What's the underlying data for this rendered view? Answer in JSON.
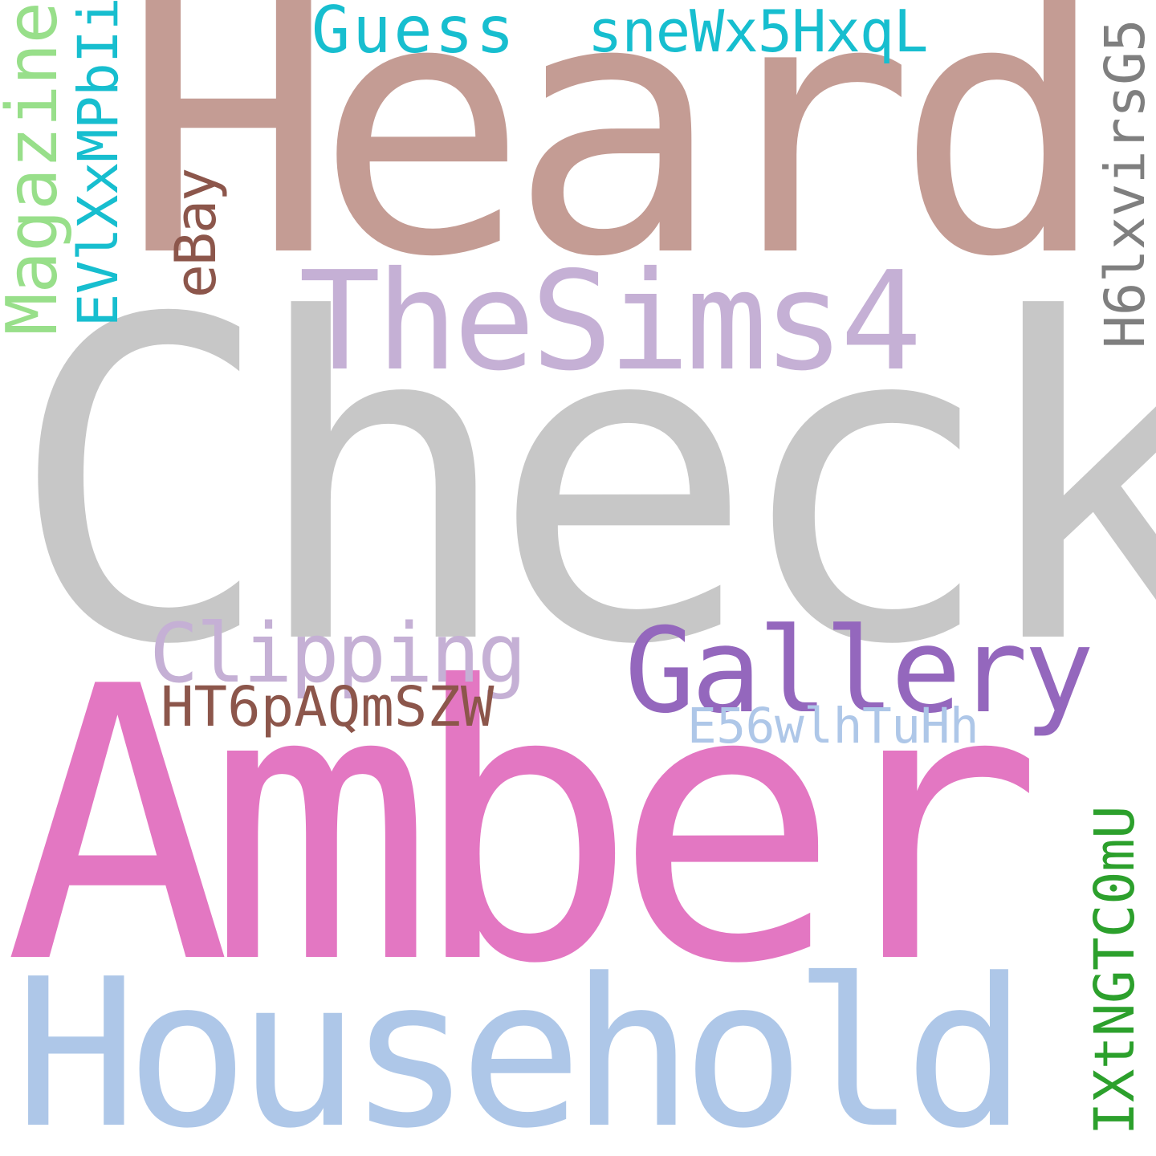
{
  "words": [
    {
      "key": "heard",
      "text": "Heard",
      "color": "#c49c94"
    },
    {
      "key": "check",
      "text": "Check",
      "color": "#c7c7c7"
    },
    {
      "key": "amber",
      "text": "Amber",
      "color": "#e377c2"
    },
    {
      "key": "household",
      "text": "Household",
      "color": "#aec7e8"
    },
    {
      "key": "thesims4",
      "text": "TheSims4",
      "color": "#c5b0d5"
    },
    {
      "key": "gallery",
      "text": "Gallery",
      "color": "#9467bd"
    },
    {
      "key": "clipping",
      "text": "Clipping",
      "color": "#c5b0d5"
    },
    {
      "key": "ht6paqmszw",
      "text": "HT6pAQmSZW",
      "color": "#8c564b"
    },
    {
      "key": "e56wlhtuhh",
      "text": "E56wlhTuHh",
      "color": "#aec7e8"
    },
    {
      "key": "guess",
      "text": "Guess",
      "color": "#17becf"
    },
    {
      "key": "snewx5hxql",
      "text": "sneWx5HxqL",
      "color": "#17becf"
    },
    {
      "key": "magazine",
      "text": "Magazine",
      "color": "#98df8a"
    },
    {
      "key": "evlxxmpbli",
      "text": "EVlXxMPbIi",
      "color": "#17becf"
    },
    {
      "key": "ebay",
      "text": "eBay",
      "color": "#8c564b"
    },
    {
      "key": "h6lxvirsg5",
      "text": "H6lxvirsG5",
      "color": "#7f7f7f"
    },
    {
      "key": "ixtngtc0mu",
      "text": "IXtNGTC0mU",
      "color": "#2ca02c"
    }
  ]
}
